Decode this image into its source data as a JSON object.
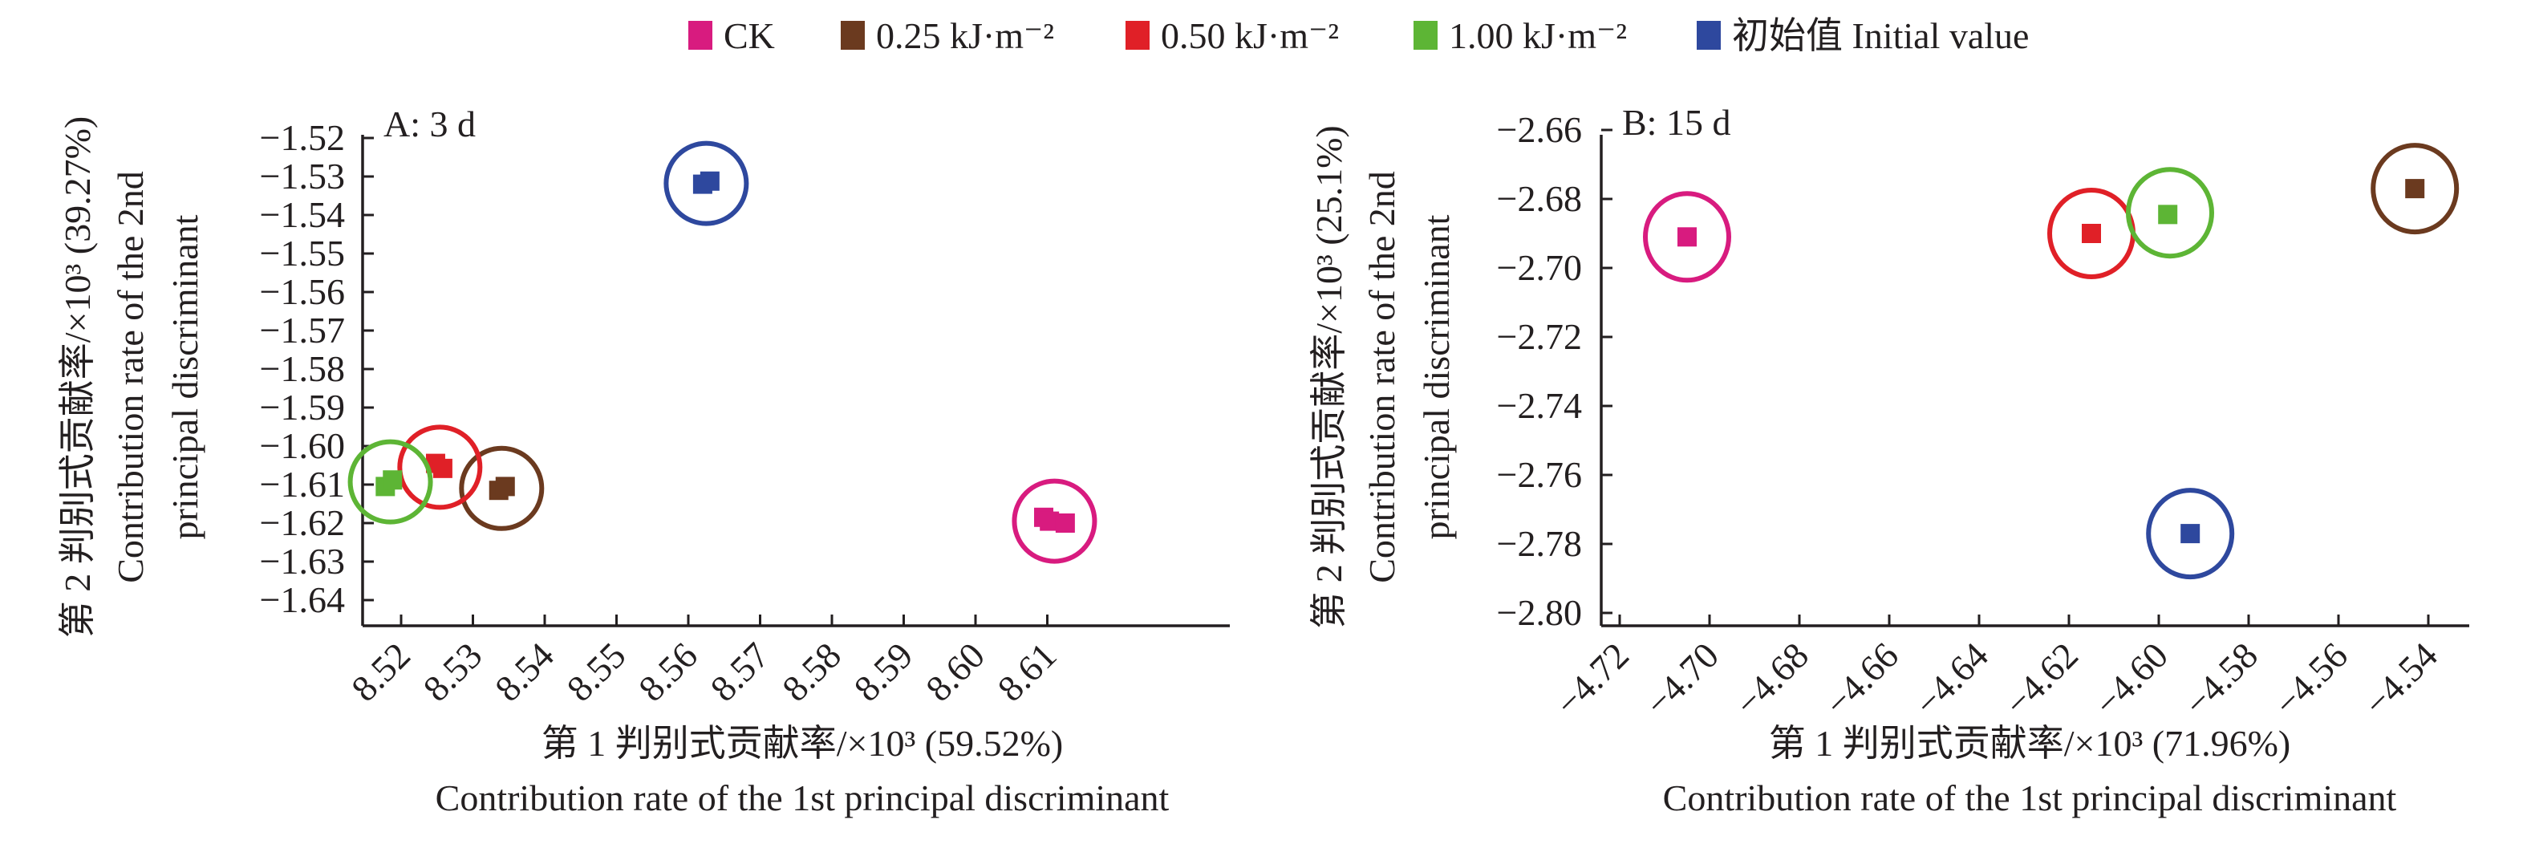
{
  "legend": {
    "items": [
      {
        "label": "CK",
        "color": "#d81b7f"
      },
      {
        "label": "0.25 kJ·m⁻²",
        "color": "#6b3a1f"
      },
      {
        "label": "0.50 kJ·m⁻²",
        "color": "#e02027"
      },
      {
        "label": "1.00 kJ·m⁻²",
        "color": "#5db535"
      },
      {
        "label": "初始值 Initial value",
        "color": "#2e489e"
      }
    ]
  },
  "chart_data": [
    {
      "type": "scatter",
      "title": "A: 3 d",
      "xlabel": "第 1 判别式贡献率/×10³ (59.52%)",
      "xlabel_en": "Contribution rate of the 1st principal discriminant",
      "ylabel": "第 2 判别式贡献率/×10³ (39.27%)",
      "ylabel_en_line1": "Contribution rate of the 2nd",
      "ylabel_en_line2": "principal discriminant",
      "xlim": [
        8.5145,
        8.6235
      ],
      "ylim": [
        -1.6475,
        -1.52
      ],
      "x_ticks": [
        8.52,
        8.53,
        8.54,
        8.55,
        8.56,
        8.57,
        8.58,
        8.59,
        8.6,
        8.61
      ],
      "x_tick_labels": [
        "8.52",
        "8.53",
        "8.54",
        "8.55",
        "8.56",
        "8.57",
        "8.58",
        "8.59",
        "8.60",
        "8.61"
      ],
      "y_ticks": [
        -1.52,
        -1.53,
        -1.54,
        -1.55,
        -1.56,
        -1.57,
        -1.58,
        -1.59,
        -1.6,
        -1.61,
        -1.62,
        -1.63,
        -1.64
      ],
      "y_tick_labels": [
        "−1.52",
        "−1.53",
        "−1.54",
        "−1.55",
        "−1.56",
        "−1.57",
        "−1.58",
        "−1.59",
        "−1.60",
        "−1.61",
        "−1.62",
        "−1.63",
        "−1.64"
      ],
      "grid": false,
      "series": [
        {
          "name": "CK",
          "color": "#d81b7f",
          "x": [
            8.6095,
            8.6103,
            8.6125
          ],
          "y": [
            -1.6185,
            -1.6195,
            -1.62
          ],
          "center": [
            8.611,
            -1.6195
          ]
        },
        {
          "name": "0.25 kJ·m⁻²",
          "color": "#6b3a1f",
          "x": [
            8.5336,
            8.5345
          ],
          "y": [
            -1.6115,
            -1.6105
          ],
          "center": [
            8.534,
            -1.611
          ]
        },
        {
          "name": "0.50 kJ·m⁻²",
          "color": "#e02027",
          "x": [
            8.5248,
            8.5258
          ],
          "y": [
            -1.6045,
            -1.6058
          ],
          "center": [
            8.5254,
            -1.6055
          ]
        },
        {
          "name": "1.00 kJ·m⁻²",
          "color": "#5db535",
          "x": [
            8.5178,
            8.5188
          ],
          "y": [
            -1.6105,
            -1.6088
          ],
          "center": [
            8.5185,
            -1.6093
          ]
        },
        {
          "name": "初始值 Initial value",
          "color": "#2e489e",
          "x": [
            8.562,
            8.563
          ],
          "y": [
            -1.532,
            -1.5312
          ],
          "center": [
            8.5625,
            -1.5318
          ]
        }
      ]
    },
    {
      "type": "scatter",
      "title": "B: 15 d",
      "xlabel": "第 1 判别式贡献率/×10³ (71.96%)",
      "xlabel_en": "Contribution rate of the 1st principal discriminant",
      "ylabel": "第 2 判别式贡献率/×10³ (25.1%)",
      "ylabel_en_line1": "Contribution rate of the 2nd",
      "ylabel_en_line2": "principal discriminant",
      "xlim": [
        -4.7245,
        -4.5305
      ],
      "ylim": [
        -2.8035,
        -2.66
      ],
      "x_ticks": [
        -4.72,
        -4.7,
        -4.68,
        -4.66,
        -4.64,
        -4.62,
        -4.6,
        -4.58,
        -4.56,
        -4.54
      ],
      "x_tick_labels": [
        "−4.72",
        "−4.70",
        "−4.68",
        "−4.66",
        "−4.64",
        "−4.62",
        "−4.60",
        "−4.58",
        "−4.56",
        "−4.54"
      ],
      "y_ticks": [
        -2.66,
        -2.68,
        -2.7,
        -2.72,
        -2.74,
        -2.76,
        -2.78,
        -2.8
      ],
      "y_tick_labels": [
        "−2.66",
        "−2.68",
        "−2.70",
        "−2.72",
        "−2.74",
        "−2.76",
        "−2.78",
        "−2.80"
      ],
      "grid": false,
      "series": [
        {
          "name": "CK",
          "color": "#d81b7f",
          "x": [
            -4.705
          ],
          "y": [
            -2.691
          ],
          "center": [
            -4.705,
            -2.691
          ]
        },
        {
          "name": "0.25 kJ·m⁻²",
          "color": "#6b3a1f",
          "x": [
            -4.543
          ],
          "y": [
            -2.677
          ],
          "center": [
            -4.543,
            -2.677
          ]
        },
        {
          "name": "0.50 kJ·m⁻²",
          "color": "#e02027",
          "x": [
            -4.615
          ],
          "y": [
            -2.69
          ],
          "center": [
            -4.615,
            -2.69
          ]
        },
        {
          "name": "1.00 kJ·m⁻²",
          "color": "#5db535",
          "x": [
            -4.598
          ],
          "y": [
            -2.6845
          ],
          "center": [
            -4.5975,
            -2.684
          ]
        },
        {
          "name": "初始值 Initial value",
          "color": "#2e489e",
          "x": [
            -4.593
          ],
          "y": [
            -2.777
          ],
          "center": [
            -4.593,
            -2.777
          ]
        }
      ]
    }
  ]
}
